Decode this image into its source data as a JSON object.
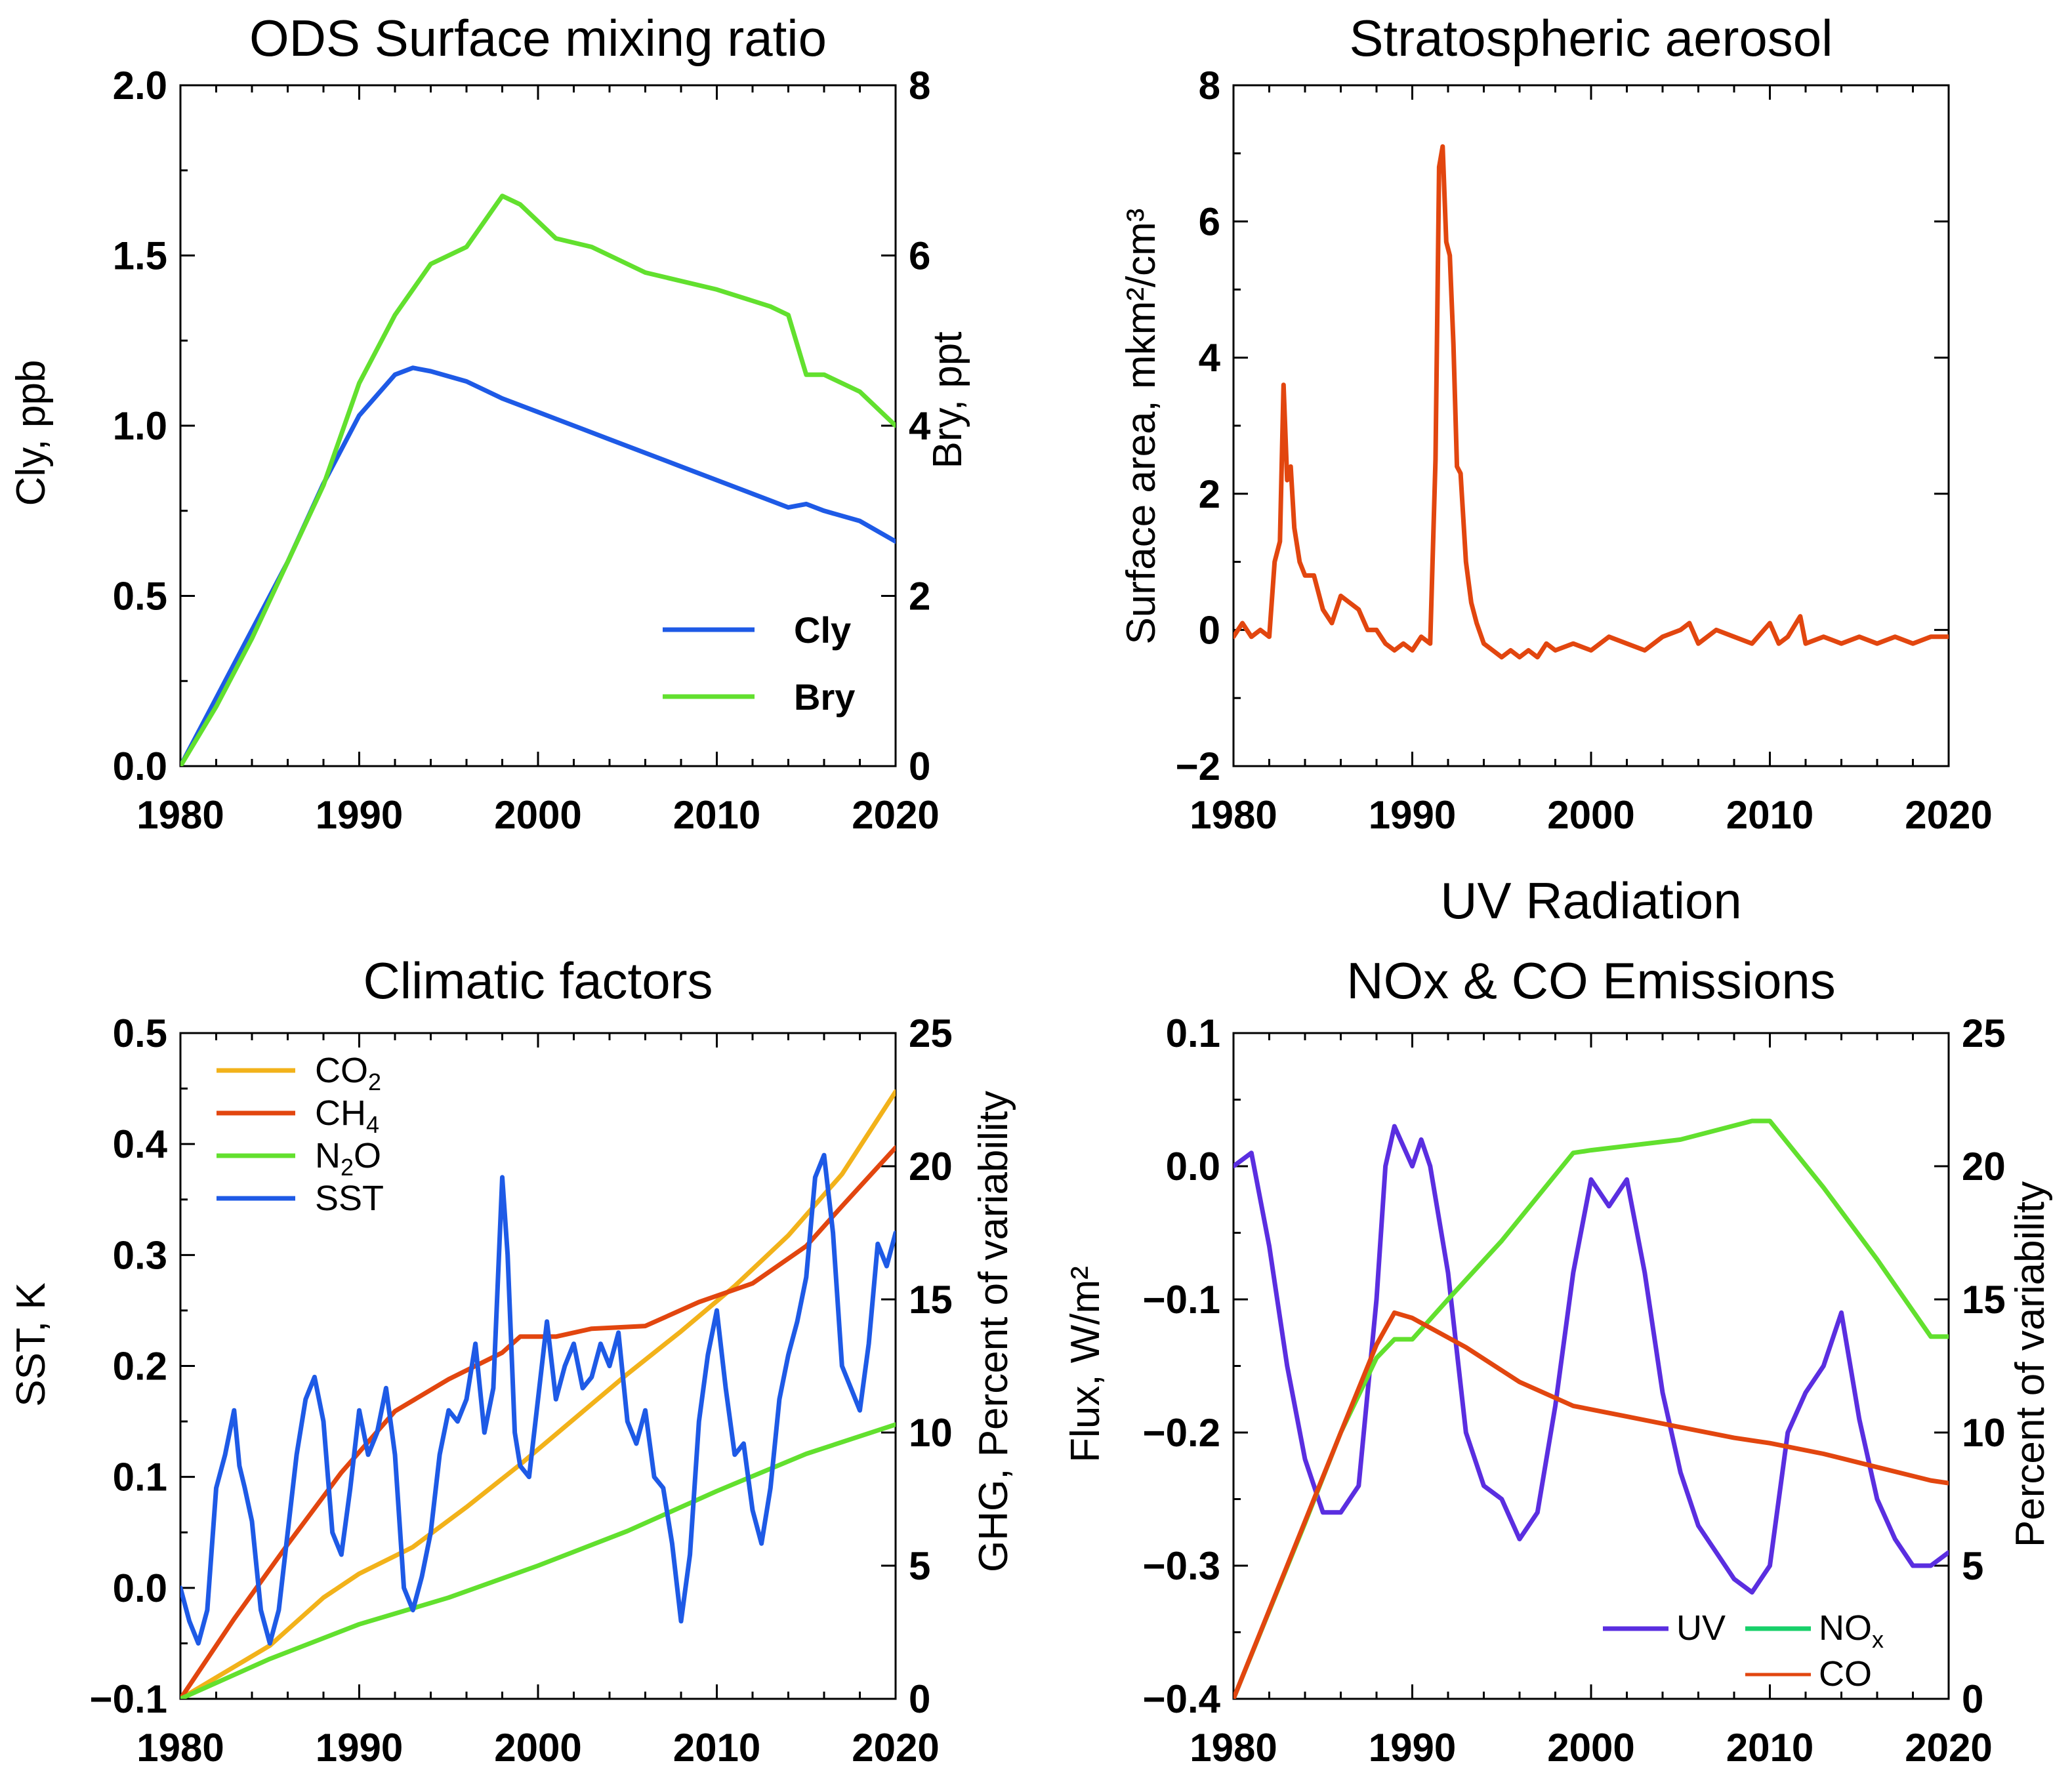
{
  "chart_data": [
    {
      "type": "line",
      "title": "ODS Surface mixing ratio",
      "ylabel": "Cly, ppb",
      "ylabel_right": "Bry, ppt",
      "xlim": [
        1980,
        2020
      ],
      "ylim": [
        0,
        2
      ],
      "ylim_right": [
        0,
        8
      ],
      "xticks": [
        "1980",
        "1990",
        "2000",
        "2010",
        "2020"
      ],
      "yticks": [
        "0.0",
        "0.5",
        "1.0",
        "1.5",
        "2.0"
      ],
      "yticks_right": [
        "0",
        "2",
        "4",
        "6",
        "8"
      ],
      "legend": [
        "Cly",
        "Bry"
      ],
      "colors": {
        "Cly": "#1e5ae6",
        "Bry": "#62e02e"
      },
      "series": [
        {
          "name": "Cly",
          "axis": "left",
          "x": [
            1980,
            1982,
            1984,
            1986,
            1988,
            1990,
            1992,
            1993,
            1994,
            1996,
            1998,
            2000,
            2004,
            2008,
            2012,
            2014,
            2015,
            2016,
            2018,
            2020
          ],
          "y": [
            0.0,
            0.2,
            0.4,
            0.6,
            0.83,
            1.03,
            1.15,
            1.17,
            1.16,
            1.13,
            1.08,
            1.04,
            0.96,
            0.88,
            0.8,
            0.76,
            0.77,
            0.75,
            0.72,
            0.66
          ]
        },
        {
          "name": "Bry",
          "axis": "right",
          "x": [
            1980,
            1982,
            1984,
            1986,
            1988,
            1990,
            1992,
            1994,
            1996,
            1997,
            1998,
            1999,
            2001,
            2003,
            2006,
            2010,
            2013,
            2014,
            2015,
            2016,
            2018,
            2020
          ],
          "y": [
            0.0,
            0.7,
            1.5,
            2.4,
            3.3,
            4.5,
            5.3,
            5.9,
            6.1,
            6.4,
            6.7,
            6.6,
            6.2,
            6.1,
            5.8,
            5.6,
            5.4,
            5.3,
            4.6,
            4.6,
            4.4,
            4.0
          ]
        }
      ]
    },
    {
      "type": "line",
      "title": "Stratospheric aerosol",
      "ylabel": "Surface area, mkm²/cm³",
      "xlim": [
        1980,
        2020
      ],
      "ylim": [
        -2,
        8
      ],
      "xticks": [
        "1980",
        "1990",
        "2000",
        "2010",
        "2020"
      ],
      "yticks": [
        "−2",
        "0",
        "2",
        "4",
        "6",
        "8"
      ],
      "colors": {
        "aerosol": "#e2460f"
      },
      "series": [
        {
          "name": "aerosol",
          "x": [
            1980,
            1980.5,
            1981,
            1981.5,
            1982,
            1982.3,
            1982.6,
            1982.8,
            1983,
            1983.2,
            1983.4,
            1983.7,
            1984,
            1984.5,
            1985,
            1985.5,
            1986,
            1986.5,
            1987,
            1987.5,
            1988,
            1988.5,
            1989,
            1989.5,
            1990,
            1990.5,
            1991,
            1991.3,
            1991.5,
            1991.7,
            1991.9,
            1992.1,
            1992.3,
            1992.5,
            1992.7,
            1993,
            1993.3,
            1993.6,
            1994,
            1994.5,
            1995,
            1995.5,
            1996,
            1996.5,
            1997,
            1997.5,
            1998,
            1999,
            2000,
            2001,
            2002,
            2003,
            2004,
            2005,
            2005.5,
            2006,
            2007,
            2008,
            2009,
            2010,
            2010.5,
            2011,
            2011.7,
            2012,
            2013,
            2014,
            2015,
            2016,
            2017,
            2018,
            2019,
            2020
          ],
          "y": [
            -0.1,
            0.1,
            -0.1,
            0.0,
            -0.1,
            1.0,
            1.3,
            3.6,
            2.2,
            2.4,
            1.5,
            1.0,
            0.8,
            0.8,
            0.3,
            0.1,
            0.5,
            0.4,
            0.3,
            0.0,
            0.0,
            -0.2,
            -0.3,
            -0.2,
            -0.3,
            -0.1,
            -0.2,
            2.5,
            6.8,
            7.1,
            5.7,
            5.5,
            4.2,
            2.4,
            2.3,
            1.0,
            0.4,
            0.1,
            -0.2,
            -0.3,
            -0.4,
            -0.3,
            -0.4,
            -0.3,
            -0.4,
            -0.2,
            -0.3,
            -0.2,
            -0.3,
            -0.1,
            -0.2,
            -0.3,
            -0.1,
            0.0,
            0.1,
            -0.2,
            0.0,
            -0.1,
            -0.2,
            0.1,
            -0.2,
            -0.1,
            0.2,
            -0.2,
            -0.1,
            -0.2,
            -0.1,
            -0.2,
            -0.1,
            -0.2,
            -0.1,
            -0.1
          ]
        }
      ]
    },
    {
      "type": "line",
      "title": "Climatic factors",
      "ylabel": "SST, K",
      "ylabel_right": "GHG, Percent of variability",
      "xlim": [
        1980,
        2020
      ],
      "ylim": [
        -0.1,
        0.5
      ],
      "ylim_right": [
        0,
        25
      ],
      "xticks": [
        "1980",
        "1990",
        "2000",
        "2010",
        "2020"
      ],
      "yticks": [
        "−0.1",
        "0.0",
        "0.1",
        "0.2",
        "0.3",
        "0.4",
        "0.5"
      ],
      "yticks_right": [
        "0",
        "5",
        "10",
        "15",
        "20",
        "25"
      ],
      "legend": [
        "CO2",
        "CH4",
        "N2O",
        "SST"
      ],
      "colors": {
        "CO2": "#f2b21a",
        "CH4": "#e2460f",
        "N2O": "#62e02e",
        "SST": "#1e5ae6"
      },
      "series": [
        {
          "name": "CO2",
          "axis": "right",
          "x": [
            1980,
            1985,
            1988,
            1990,
            1993,
            1996,
            1999,
            2002,
            2005,
            2008,
            2011,
            2014,
            2017,
            2020
          ],
          "y": [
            0,
            2.0,
            3.8,
            4.7,
            5.7,
            7.2,
            8.8,
            10.5,
            12.2,
            13.8,
            15.5,
            17.4,
            19.7,
            22.8
          ]
        },
        {
          "name": "CH4",
          "axis": "right",
          "x": [
            1980,
            1983,
            1986,
            1989,
            1992,
            1995,
            1998,
            1999,
            2001,
            2003,
            2006,
            2009,
            2012,
            2015,
            2017,
            2020
          ],
          "y": [
            0,
            3.0,
            5.8,
            8.5,
            10.8,
            12.0,
            13.0,
            13.6,
            13.6,
            13.9,
            14.0,
            14.9,
            15.6,
            17.0,
            18.5,
            20.7
          ]
        },
        {
          "name": "N2O",
          "axis": "right",
          "x": [
            1980,
            1985,
            1990,
            1995,
            2000,
            2005,
            2010,
            2015,
            2020
          ],
          "y": [
            0,
            1.5,
            2.8,
            3.8,
            5.0,
            6.3,
            7.8,
            9.2,
            10.3
          ]
        },
        {
          "name": "SST",
          "axis": "left",
          "x": [
            1980,
            1980.5,
            1981,
            1981.5,
            1982,
            1982.5,
            1983,
            1983.3,
            1983.6,
            1984,
            1984.5,
            1985,
            1985.5,
            1986,
            1986.5,
            1987,
            1987.5,
            1988,
            1988.5,
            1989,
            1989.5,
            1990,
            1990.5,
            1991,
            1991.5,
            1992,
            1992.5,
            1993,
            1993.5,
            1994,
            1994.5,
            1995,
            1995.5,
            1996,
            1996.5,
            1997,
            1997.5,
            1998,
            1998.3,
            1998.7,
            1999,
            1999.5,
            2000,
            2000.5,
            2001,
            2001.5,
            2002,
            2002.5,
            2003,
            2003.5,
            2004,
            2004.5,
            2005,
            2005.5,
            2006,
            2006.5,
            2007,
            2007.5,
            2008,
            2008.5,
            2009,
            2009.5,
            2010,
            2010.5,
            2011,
            2011.5,
            2012,
            2012.5,
            2013,
            2013.5,
            2014,
            2014.5,
            2015,
            2015.5,
            2016,
            2016.5,
            2017,
            2017.5,
            2018,
            2018.5,
            2019,
            2019.5,
            2020
          ],
          "y": [
            0.0,
            -0.03,
            -0.05,
            -0.02,
            0.09,
            0.12,
            0.16,
            0.11,
            0.09,
            0.06,
            -0.02,
            -0.05,
            -0.02,
            0.05,
            0.12,
            0.17,
            0.19,
            0.15,
            0.05,
            0.03,
            0.09,
            0.16,
            0.12,
            0.14,
            0.18,
            0.12,
            0.0,
            -0.02,
            0.01,
            0.05,
            0.12,
            0.16,
            0.15,
            0.17,
            0.22,
            0.14,
            0.18,
            0.37,
            0.3,
            0.14,
            0.11,
            0.1,
            0.17,
            0.24,
            0.17,
            0.2,
            0.22,
            0.18,
            0.19,
            0.22,
            0.2,
            0.23,
            0.15,
            0.13,
            0.16,
            0.1,
            0.09,
            0.04,
            -0.03,
            0.03,
            0.15,
            0.21,
            0.25,
            0.18,
            0.12,
            0.13,
            0.07,
            0.04,
            0.09,
            0.17,
            0.21,
            0.24,
            0.28,
            0.37,
            0.39,
            0.32,
            0.2,
            0.18,
            0.16,
            0.22,
            0.31,
            0.29,
            0.32
          ]
        }
      ]
    },
    {
      "type": "line",
      "title": "UV Radiation",
      "subtitle": "NOx & CO Emissions",
      "ylabel": "Flux, W/m²",
      "ylabel_right": "Percent of variability",
      "xlim": [
        1980,
        2020
      ],
      "ylim": [
        -0.4,
        0.1
      ],
      "ylim_right": [
        0,
        25
      ],
      "xticks": [
        "1980",
        "1990",
        "2000",
        "2010",
        "2020"
      ],
      "yticks": [
        "−0.4",
        "−0.3",
        "−0.2",
        "−0.1",
        "0.0",
        "0.1"
      ],
      "yticks_right": [
        "0",
        "5",
        "10",
        "15",
        "20",
        "25"
      ],
      "legend": [
        "UV",
        "NOx",
        "CO"
      ],
      "colors": {
        "UV": "#5a2ee0",
        "NOx": "#62e02e",
        "CO": "#e2460f",
        "NOx_legend": "#17d06a"
      },
      "series": [
        {
          "name": "UV",
          "axis": "left",
          "x": [
            1980,
            1981,
            1982,
            1983,
            1984,
            1985,
            1986,
            1987,
            1988,
            1988.5,
            1989,
            1990,
            1990.5,
            1991,
            1992,
            1993,
            1994,
            1995,
            1996,
            1997,
            1998,
            1999,
            2000,
            2001,
            2002,
            2003,
            2004,
            2005,
            2006,
            2007,
            2008,
            2009,
            2010,
            2011,
            2012,
            2013,
            2014,
            2015,
            2016,
            2017,
            2018,
            2019,
            2020
          ],
          "y": [
            0.0,
            0.01,
            -0.06,
            -0.15,
            -0.22,
            -0.26,
            -0.26,
            -0.24,
            -0.1,
            0.0,
            0.03,
            0.0,
            0.02,
            0.0,
            -0.08,
            -0.2,
            -0.24,
            -0.25,
            -0.28,
            -0.26,
            -0.18,
            -0.08,
            -0.01,
            -0.03,
            -0.01,
            -0.08,
            -0.17,
            -0.23,
            -0.27,
            -0.29,
            -0.31,
            -0.32,
            -0.3,
            -0.2,
            -0.17,
            -0.15,
            -0.11,
            -0.19,
            -0.25,
            -0.28,
            -0.3,
            -0.3,
            -0.29
          ]
        },
        {
          "name": "NOx",
          "axis": "right",
          "x": [
            1980,
            1982,
            1984,
            1986,
            1988,
            1989,
            1990,
            1992,
            1995,
            1999,
            2000,
            2005,
            2009,
            2010,
            2013,
            2016,
            2019,
            2020
          ],
          "y": [
            0,
            3.3,
            6.6,
            10.0,
            12.8,
            13.5,
            13.5,
            15.0,
            17.2,
            20.5,
            20.6,
            21.0,
            21.7,
            21.7,
            19.2,
            16.5,
            13.6,
            13.6
          ]
        },
        {
          "name": "CO",
          "axis": "right",
          "x": [
            1980,
            1983,
            1986,
            1988,
            1989,
            1990,
            1993,
            1996,
            1999,
            2002,
            2005,
            2008,
            2010,
            2013,
            2016,
            2019,
            2020
          ],
          "y": [
            0,
            5.0,
            10.0,
            13.3,
            14.5,
            14.3,
            13.2,
            11.9,
            11.0,
            10.6,
            10.2,
            9.8,
            9.6,
            9.2,
            8.7,
            8.2,
            8.1
          ]
        }
      ]
    }
  ]
}
